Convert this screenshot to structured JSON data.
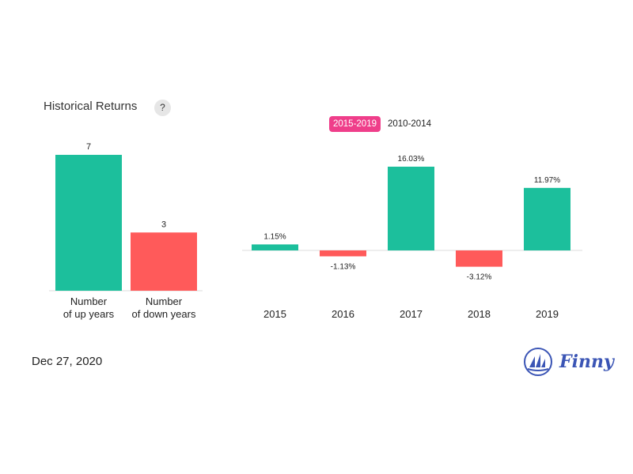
{
  "header": {
    "title": "Historical Returns",
    "help_glyph": "?"
  },
  "tabs": [
    {
      "label": "2015-2019",
      "active": true
    },
    {
      "label": "2010-2014",
      "active": false
    }
  ],
  "colors": {
    "up": "#1cbf9c",
    "down": "#ff5a5a",
    "accent": "#ef3e8a",
    "brand": "#3b55b5"
  },
  "footer": {
    "date": "Dec 27, 2020",
    "brand": "Finny",
    "logo_icon": "sailboat-logo-icon"
  },
  "chart_data": [
    {
      "type": "bar",
      "categories": [
        [
          "Number",
          "of up years"
        ],
        [
          "Number",
          "of down years"
        ]
      ],
      "values": [
        7,
        3
      ],
      "value_labels": [
        "7",
        "3"
      ],
      "ylim": [
        0,
        7
      ]
    },
    {
      "type": "bar",
      "categories": [
        "2015",
        "2016",
        "2017",
        "2018",
        "2019"
      ],
      "values": [
        1.15,
        -1.13,
        16.03,
        -3.12,
        11.97
      ],
      "value_labels": [
        "1.15%",
        "-1.13%",
        "16.03%",
        "-3.12%",
        "11.97%"
      ],
      "unit": "%",
      "ylim": [
        -3.12,
        16.03
      ]
    }
  ]
}
